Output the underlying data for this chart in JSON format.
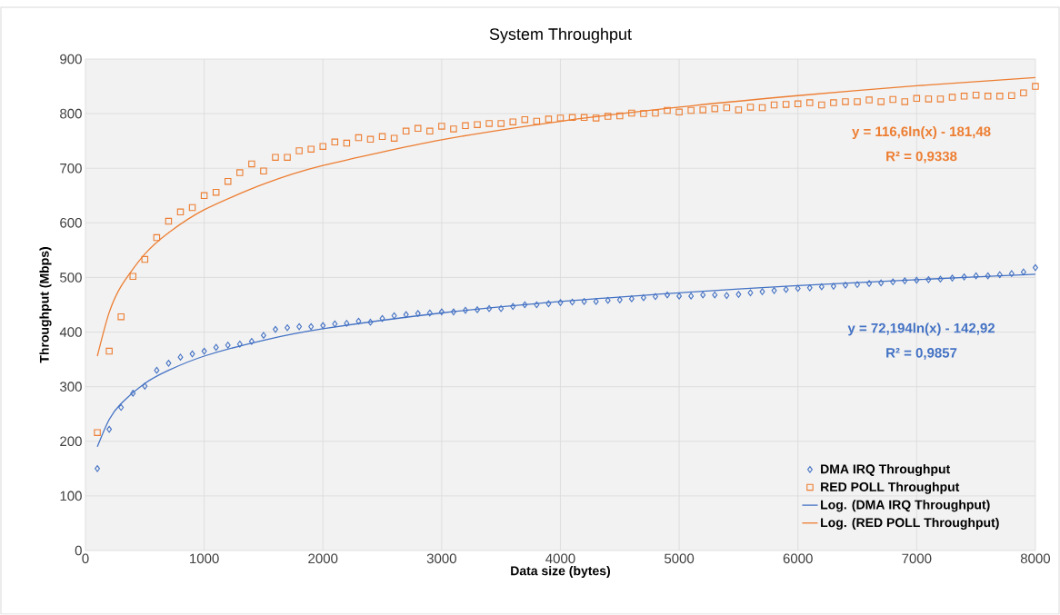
{
  "chart_data": {
    "type": "scatter",
    "title": "System Throughput",
    "xlabel": "Data size (bytes)",
    "ylabel": "Throughput (Mbps)",
    "xlim": [
      0,
      8000
    ],
    "xticks": [
      0,
      1000,
      2000,
      3000,
      4000,
      5000,
      6000,
      7000,
      8000
    ],
    "ylim": [
      0,
      900
    ],
    "yticks": [
      0,
      100,
      200,
      300,
      400,
      500,
      600,
      700,
      800,
      900
    ],
    "grid": true,
    "legend": "bottom right",
    "x": [
      100,
      200,
      300,
      400,
      500,
      600,
      700,
      800,
      900,
      1000,
      1100,
      1200,
      1300,
      1400,
      1500,
      1600,
      1700,
      1800,
      1900,
      2000,
      2100,
      2200,
      2300,
      2400,
      2500,
      2600,
      2700,
      2800,
      2900,
      3000,
      3100,
      3200,
      3300,
      3400,
      3500,
      3600,
      3700,
      3800,
      3900,
      4000,
      4100,
      4200,
      4300,
      4400,
      4500,
      4600,
      4700,
      4800,
      4900,
      5000,
      5100,
      5200,
      5300,
      5400,
      5500,
      5600,
      5700,
      5800,
      5900,
      6000,
      6100,
      6200,
      6300,
      6400,
      6500,
      6600,
      6700,
      6800,
      6900,
      7000,
      7100,
      7200,
      7300,
      7400,
      7500,
      7600,
      7700,
      7800,
      7900,
      8000
    ],
    "series": [
      {
        "name": "DMA IRQ Throughput",
        "marker": "diamond",
        "color": "#4472c4",
        "values": [
          150,
          222,
          262,
          288,
          301,
          330,
          343,
          354,
          360,
          365,
          372,
          376,
          378,
          383,
          394,
          405,
          408,
          410,
          410,
          412,
          415,
          416,
          420,
          418,
          425,
          430,
          432,
          434,
          435,
          437,
          437,
          440,
          441,
          443,
          443,
          447,
          450,
          450,
          452,
          454,
          455,
          456,
          456,
          458,
          459,
          461,
          463,
          465,
          468,
          466,
          466,
          468,
          468,
          467,
          469,
          472,
          474,
          476,
          478,
          480,
          481,
          483,
          484,
          486,
          487,
          489,
          490,
          492,
          494,
          495,
          496,
          497,
          499,
          501,
          503,
          503,
          505,
          507,
          510,
          518
        ]
      },
      {
        "name": "RED POLL Throughput",
        "marker": "square",
        "color": "#ed7d31",
        "values": [
          216,
          365,
          428,
          502,
          533,
          573,
          603,
          620,
          628,
          650,
          656,
          676,
          692,
          708,
          695,
          720,
          720,
          732,
          735,
          740,
          748,
          746,
          756,
          753,
          758,
          755,
          768,
          773,
          768,
          777,
          772,
          778,
          780,
          782,
          782,
          785,
          789,
          786,
          790,
          792,
          793,
          793,
          792,
          795,
          796,
          801,
          800,
          801,
          806,
          803,
          806,
          807,
          809,
          811,
          807,
          812,
          811,
          816,
          817,
          818,
          820,
          816,
          820,
          822,
          822,
          825,
          822,
          826,
          822,
          828,
          827,
          827,
          830,
          832,
          834,
          832,
          832,
          833,
          838,
          850
        ]
      },
      {
        "name": "Log. (DMA IRQ Throughput)",
        "type": "line",
        "line_style": "solid",
        "color": "#4472c4",
        "x": [
          100,
          200,
          300,
          500,
          700,
          1000,
          1500,
          2000,
          3000,
          4000,
          5000,
          6000,
          7000,
          8000
        ],
        "values": [
          190,
          240,
          269,
          306,
          330,
          356,
          385,
          406,
          435,
          456,
          472,
          485,
          496,
          506
        ]
      },
      {
        "name": "Log. (RED POLL Throughput)",
        "type": "line",
        "line_style": "solid",
        "color": "#ed7d31",
        "x": [
          100,
          200,
          300,
          500,
          700,
          1000,
          1500,
          2000,
          3000,
          4000,
          5000,
          6000,
          7000,
          8000
        ],
        "values": [
          356,
          436,
          484,
          543,
          582,
          624,
          671,
          705,
          752,
          786,
          812,
          833,
          851,
          866
        ]
      }
    ],
    "annotations": [
      "y = 116,6ln(x) - 181,48",
      "R² = 0,9338",
      "y = 72,194ln(x) - 142,92",
      "R² = 0,9857"
    ]
  }
}
